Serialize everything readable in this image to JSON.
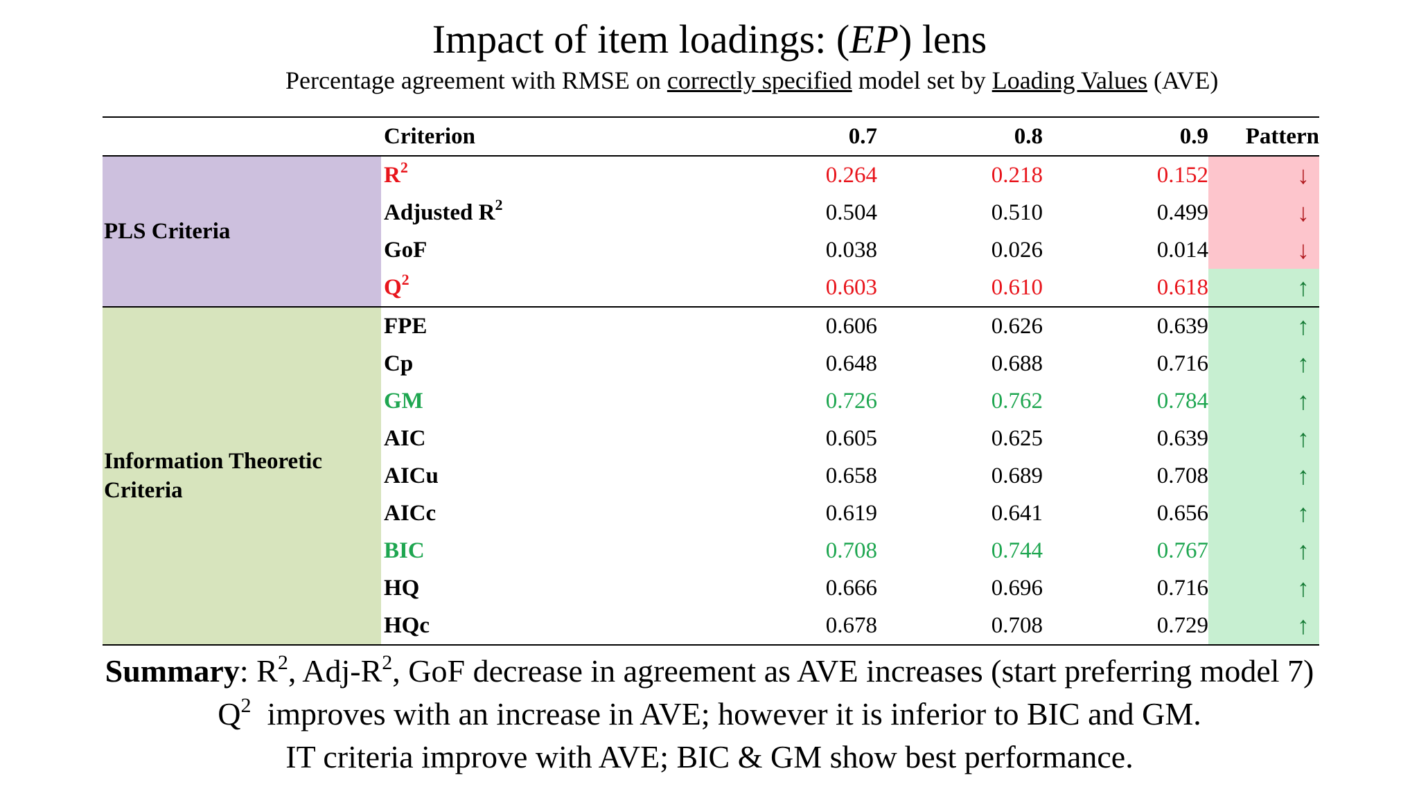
{
  "title": {
    "prefix": "Impact of item loadings: (",
    "italic": "EP",
    "suffix": ") lens"
  },
  "subtitle": {
    "part1": "Percentage agreement with RMSE on ",
    "underline1": "correctly specified",
    "part2": " model set by ",
    "underline2": "Loading Values",
    "part3": " (AVE)"
  },
  "table": {
    "headers": {
      "criterion": "Criterion",
      "c1": "0.7",
      "c2": "0.8",
      "c3": "0.9",
      "pattern": "Pattern"
    },
    "groups": {
      "pls": "PLS Criteria",
      "it": "Information Theoretic Criteria"
    },
    "rows": [
      {
        "name": "R",
        "sup": "2",
        "v1": "0.264",
        "v2": "0.218",
        "v3": "0.152",
        "pattern": "↓"
      },
      {
        "name": "Adjusted R",
        "sup": "2",
        "v1": "0.504",
        "v2": "0.510",
        "v3": "0.499",
        "pattern": "↓"
      },
      {
        "name": "GoF",
        "sup": "",
        "v1": "0.038",
        "v2": "0.026",
        "v3": "0.014",
        "pattern": "↓"
      },
      {
        "name": "Q",
        "sup": "2",
        "v1": "0.603",
        "v2": "0.610",
        "v3": "0.618",
        "pattern": "↑"
      },
      {
        "name": "FPE",
        "sup": "",
        "v1": "0.606",
        "v2": "0.626",
        "v3": "0.639",
        "pattern": "↑"
      },
      {
        "name": "Cp",
        "sup": "",
        "v1": "0.648",
        "v2": "0.688",
        "v3": "0.716",
        "pattern": "↑"
      },
      {
        "name": "GM",
        "sup": "",
        "v1": "0.726",
        "v2": "0.762",
        "v3": "0.784",
        "pattern": "↑"
      },
      {
        "name": "AIC",
        "sup": "",
        "v1": "0.605",
        "v2": "0.625",
        "v3": "0.639",
        "pattern": "↑"
      },
      {
        "name": "AICu",
        "sup": "",
        "v1": "0.658",
        "v2": "0.689",
        "v3": "0.708",
        "pattern": "↑"
      },
      {
        "name": "AICc",
        "sup": "",
        "v1": "0.619",
        "v2": "0.641",
        "v3": "0.656",
        "pattern": "↑"
      },
      {
        "name": "BIC",
        "sup": "",
        "v1": "0.708",
        "v2": "0.744",
        "v3": "0.767",
        "pattern": "↑"
      },
      {
        "name": "HQ",
        "sup": "",
        "v1": "0.666",
        "v2": "0.696",
        "v3": "0.716",
        "pattern": "↑"
      },
      {
        "name": "HQc",
        "sup": "",
        "v1": "0.678",
        "v2": "0.708",
        "v3": "0.729",
        "pattern": "↑"
      }
    ]
  },
  "summary": {
    "line1_bold": "Summary",
    "line1_a": ": R",
    "line1_sup1": "2",
    "line1_b": ", Adj-R",
    "line1_sup2": "2",
    "line1_c": ", GoF decrease in agreement as AVE increases (start preferring model 7)",
    "line2_a": "Q",
    "line2_sup": "2",
    "line2_b": "  improves with an increase in AVE; however it is inferior to BIC and GM.",
    "line3": "IT criteria improve with AVE; BIC & GM show best performance."
  },
  "colors": {
    "highlight_red": "#e8141b",
    "highlight_green": "#1ea650",
    "pls_group_bg": "#cdc0de",
    "it_group_bg": "#d7e4bd",
    "pattern_down_bg": "#fdc5cc",
    "pattern_up_bg": "#c7efd1"
  }
}
